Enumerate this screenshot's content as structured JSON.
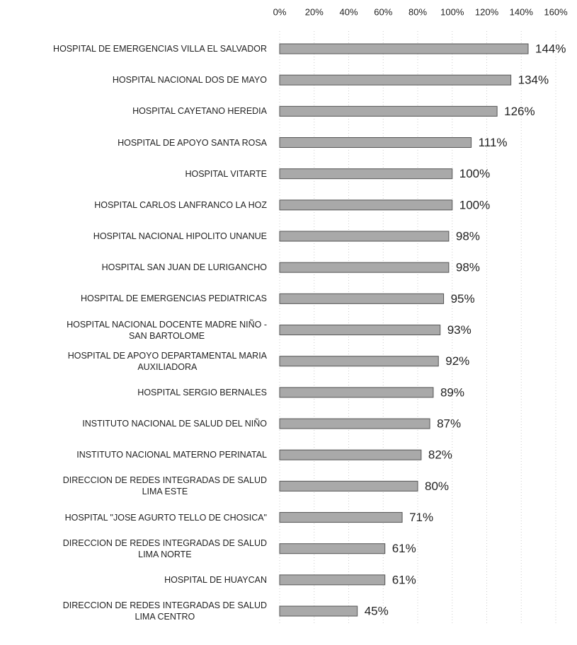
{
  "chart_data": {
    "type": "barh",
    "categories": [
      "HOSPITAL DE EMERGENCIAS VILLA EL SALVADOR",
      "HOSPITAL NACIONAL DOS DE MAYO",
      "HOSPITAL CAYETANO HEREDIA",
      "HOSPITAL DE APOYO SANTA ROSA",
      "HOSPITAL VITARTE",
      "HOSPITAL CARLOS LANFRANCO LA HOZ",
      "HOSPITAL NACIONAL HIPOLITO UNANUE",
      "HOSPITAL SAN JUAN DE LURIGANCHO",
      "HOSPITAL DE EMERGENCIAS PEDIATRICAS",
      "HOSPITAL NACIONAL DOCENTE MADRE NIÑO -\nSAN BARTOLOME",
      "HOSPITAL DE APOYO DEPARTAMENTAL MARIA\nAUXILIADORA",
      "HOSPITAL SERGIO BERNALES",
      "INSTITUTO NACIONAL DE SALUD DEL NIÑO",
      "INSTITUTO NACIONAL MATERNO PERINATAL",
      "DIRECCION DE REDES INTEGRADAS DE SALUD\nLIMA ESTE",
      "HOSPITAL \"JOSE AGURTO TELLO DE CHOSICA\"",
      "DIRECCION DE REDES INTEGRADAS DE SALUD\nLIMA NORTE",
      "HOSPITAL DE HUAYCAN",
      "DIRECCION DE REDES INTEGRADAS DE SALUD\nLIMA CENTRO"
    ],
    "values": [
      144,
      134,
      126,
      111,
      100,
      100,
      98,
      98,
      95,
      93,
      92,
      89,
      87,
      82,
      80,
      71,
      61,
      61,
      45
    ],
    "value_labels": [
      "144%",
      "134%",
      "126%",
      "111%",
      "100%",
      "100%",
      "98%",
      "98%",
      "95%",
      "93%",
      "92%",
      "89%",
      "87%",
      "82%",
      "80%",
      "71%",
      "61%",
      "61%",
      "45%"
    ],
    "color": "#a9a9a9",
    "xlim": [
      0,
      160
    ],
    "xticks": [
      {
        "value": 0,
        "label": "0%"
      },
      {
        "value": 20,
        "label": "20%"
      },
      {
        "value": 40,
        "label": "40%"
      },
      {
        "value": 60,
        "label": "60%"
      },
      {
        "value": 80,
        "label": "80%"
      },
      {
        "value": 100,
        "label": "100%"
      },
      {
        "value": 120,
        "label": "120%"
      },
      {
        "value": 140,
        "label": "140%"
      },
      {
        "value": 160,
        "label": "160%"
      }
    ],
    "grid": true
  }
}
